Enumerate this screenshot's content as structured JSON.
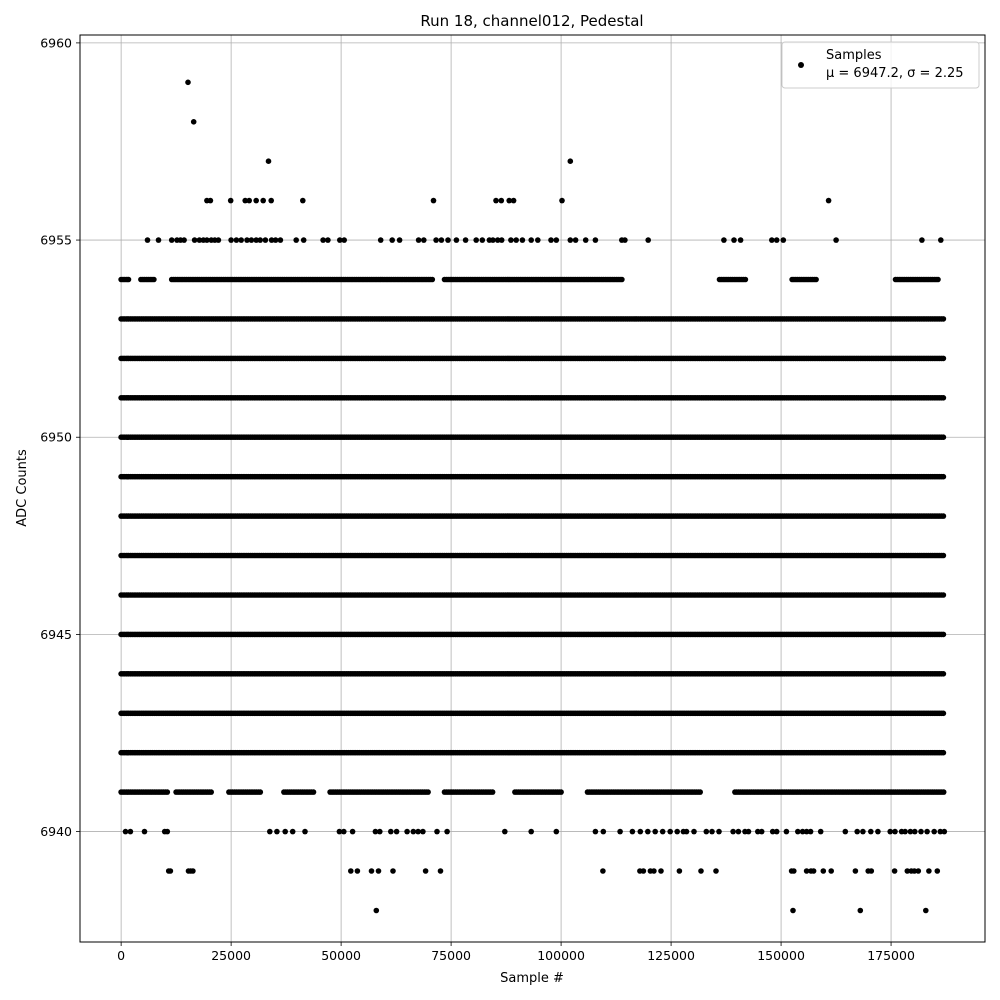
{
  "chart_data": {
    "type": "scatter",
    "title": "Run 18, channel012, Pedestal",
    "xlabel": "Sample #",
    "ylabel": "ADC Counts",
    "xlim": [
      -9350,
      196350
    ],
    "ylim": [
      6937.2,
      6960.2
    ],
    "x_ticks": [
      0,
      25000,
      50000,
      75000,
      100000,
      125000,
      150000,
      175000
    ],
    "y_ticks": [
      6940,
      6945,
      6950,
      6955,
      6960
    ],
    "grid": true,
    "legend": {
      "placement": "top-right",
      "series_label": "Samples",
      "stats_text": "μ = 6947.2, σ = 2.25"
    },
    "marker_color": "#000000",
    "series": [
      {
        "name": "Samples",
        "n_samples": 187000,
        "value_bands": [
          {
            "y": 6938,
            "x": [
              58000,
              152700,
              168000,
              182900
            ]
          },
          {
            "y": 6939,
            "x": [
              10800,
              11200,
              15300,
              15800,
              16300,
              52200,
              53700,
              56900,
              58500,
              61800,
              69200,
              72600,
              109500,
              117900,
              118700,
              120300,
              121100,
              122700,
              126900,
              131800,
              135200,
              152400,
              152900,
              155800,
              156800,
              157400,
              159600,
              161400,
              166900,
              169800,
              170500,
              175800,
              178700,
              179600,
              180300,
              181200,
              183600,
              185500
            ]
          },
          {
            "y": 6940,
            "x": [
              1000,
              2100,
              5300,
              9900,
              10500,
              33800,
              35400,
              37300,
              39000,
              41800,
              49600,
              50600,
              52600,
              57800,
              58800,
              61300,
              62600,
              65000,
              66400,
              67500,
              68600,
              71800,
              74100,
              87200,
              93200,
              98900,
              107800,
              109600,
              113400,
              116200,
              118000,
              119700,
              121400,
              123100,
              124800,
              126400,
              127800,
              128500,
              130200,
              133000,
              134300,
              135900,
              139100,
              140300,
              141800,
              142600,
              144700,
              145600,
              148100,
              149000,
              151200,
              153800,
              154900,
              155800,
              156700,
              159000,
              164600,
              167300,
              168600,
              170400,
              172000,
              174800,
              175900,
              177400,
              178200,
              179400,
              180400,
              181800,
              183200,
              184800,
              186200,
              187100
            ]
          },
          {
            "y": 6941,
            "x_dense_ranges": [
              [
                0,
                10500
              ],
              [
                12500,
                20500
              ],
              [
                24500,
                32000
              ],
              [
                37000,
                44000
              ],
              [
                47500,
                70000
              ],
              [
                73500,
                84500
              ],
              [
                89500,
                100000
              ],
              [
                106000,
                132000
              ],
              [
                139500,
                187000
              ]
            ]
          },
          {
            "y": 6942,
            "x_dense_ranges": [
              [
                0,
                187000
              ]
            ]
          },
          {
            "y": 6943,
            "x_dense_ranges": [
              [
                0,
                187000
              ]
            ]
          },
          {
            "y": 6944,
            "x_dense_ranges": [
              [
                0,
                187000
              ]
            ]
          },
          {
            "y": 6945,
            "x_dense_ranges": [
              [
                0,
                187000
              ]
            ]
          },
          {
            "y": 6946,
            "x_dense_ranges": [
              [
                0,
                187000
              ]
            ]
          },
          {
            "y": 6947,
            "x_dense_ranges": [
              [
                0,
                187000
              ]
            ]
          },
          {
            "y": 6948,
            "x_dense_ranges": [
              [
                0,
                187000
              ]
            ]
          },
          {
            "y": 6949,
            "x_dense_ranges": [
              [
                0,
                187000
              ]
            ]
          },
          {
            "y": 6950,
            "x_dense_ranges": [
              [
                0,
                187000
              ]
            ]
          },
          {
            "y": 6951,
            "x_dense_ranges": [
              [
                0,
                187000
              ]
            ]
          },
          {
            "y": 6952,
            "x_dense_ranges": [
              [
                0,
                187000
              ]
            ]
          },
          {
            "y": 6953,
            "x_dense_ranges": [
              [
                0,
                187000
              ]
            ]
          },
          {
            "y": 6954,
            "x_dense_ranges": [
              [
                0,
                2000
              ],
              [
                4500,
                7500
              ],
              [
                11500,
                71000
              ],
              [
                73500,
                114000
              ],
              [
                136000,
                142000
              ],
              [
                152500,
                158000
              ],
              [
                176000,
                186000
              ]
            ]
          },
          {
            "y": 6955,
            "x": [
              6000,
              8500,
              11500,
              12700,
              13500,
              14300,
              16700,
              17800,
              18700,
              19500,
              20500,
              21300,
              22100,
              25000,
              26200,
              27300,
              28600,
              29600,
              30700,
              31600,
              32800,
              34200,
              35100,
              36200,
              39800,
              41500,
              45900,
              47000,
              49700,
              50700,
              59000,
              61600,
              63300,
              67600,
              68800,
              71600,
              72800,
              74300,
              76200,
              78300,
              80700,
              82100,
              83700,
              84500,
              85600,
              86500,
              88600,
              89800,
              91200,
              93200,
              94700,
              97700,
              98900,
              102100,
              103300,
              105600,
              107800,
              113800,
              114500,
              119800,
              137000,
              139300,
              140800,
              147900,
              149000,
              150500,
              162500,
              182000,
              186300
            ]
          },
          {
            "y": 6956,
            "x": [
              19500,
              20300,
              24900,
              28200,
              29100,
              30700,
              32300,
              34100,
              41300,
              71000,
              85200,
              86400,
              88200,
              89200,
              100200,
              160800
            ]
          },
          {
            "y": 6957,
            "x": [
              33500,
              102100
            ]
          },
          {
            "y": 6958,
            "x": [
              16500
            ]
          },
          {
            "y": 6959,
            "x": [
              15200
            ]
          }
        ]
      }
    ]
  }
}
